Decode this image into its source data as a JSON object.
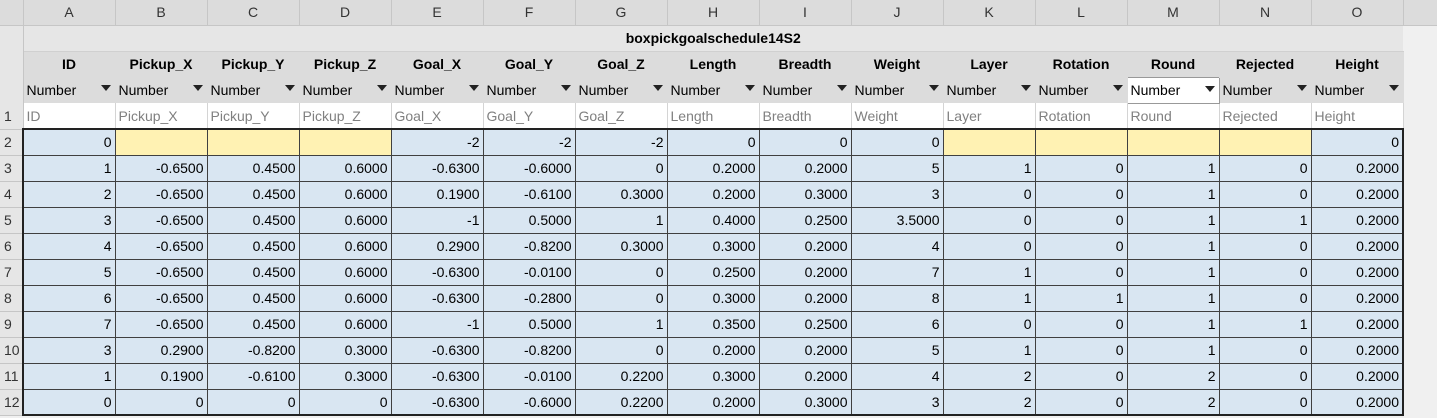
{
  "columns": [
    "A",
    "B",
    "C",
    "D",
    "E",
    "F",
    "G",
    "H",
    "I",
    "J",
    "K",
    "L",
    "M",
    "N",
    "O"
  ],
  "table_title": "boxpickgoalschedule14S2",
  "fields": [
    "ID",
    "Pickup_X",
    "Pickup_Y",
    "Pickup_Z",
    "Goal_X",
    "Goal_Y",
    "Goal_Z",
    "Length",
    "Breadth",
    "Weight",
    "Layer",
    "Rotation",
    "Round",
    "Rejected",
    "Height"
  ],
  "type_label": "Number",
  "active_type_column": "M",
  "header_row_number": "1",
  "header_values": [
    "ID",
    "Pickup_X",
    "Pickup_Y",
    "Pickup_Z",
    "Goal_X",
    "Goal_Y",
    "Goal_Z",
    "Length",
    "Breadth",
    "Weight",
    "Layer",
    "Rotation",
    "Round",
    "Rejected",
    "Height"
  ],
  "rows": [
    {
      "n": "2",
      "cells": [
        "0",
        "",
        "",
        "",
        "-2",
        "-2",
        "-2",
        "0",
        "0",
        "0",
        "",
        "",
        "",
        "",
        "0"
      ]
    },
    {
      "n": "3",
      "cells": [
        "1",
        "-0.6500",
        "0.4500",
        "0.6000",
        "-0.6300",
        "-0.6000",
        "0",
        "0.2000",
        "0.2000",
        "5",
        "1",
        "0",
        "1",
        "0",
        "0.2000"
      ]
    },
    {
      "n": "4",
      "cells": [
        "2",
        "-0.6500",
        "0.4500",
        "0.6000",
        "0.1900",
        "-0.6100",
        "0.3000",
        "0.2000",
        "0.3000",
        "3",
        "0",
        "0",
        "1",
        "0",
        "0.2000"
      ]
    },
    {
      "n": "5",
      "cells": [
        "3",
        "-0.6500",
        "0.4500",
        "0.6000",
        "-1",
        "0.5000",
        "1",
        "0.4000",
        "0.2500",
        "3.5000",
        "0",
        "0",
        "1",
        "1",
        "0.2000"
      ]
    },
    {
      "n": "6",
      "cells": [
        "4",
        "-0.6500",
        "0.4500",
        "0.6000",
        "0.2900",
        "-0.8200",
        "0.3000",
        "0.3000",
        "0.2000",
        "4",
        "0",
        "0",
        "1",
        "0",
        "0.2000"
      ]
    },
    {
      "n": "7",
      "cells": [
        "5",
        "-0.6500",
        "0.4500",
        "0.6000",
        "-0.6300",
        "-0.0100",
        "0",
        "0.2500",
        "0.2000",
        "7",
        "1",
        "0",
        "1",
        "0",
        "0.2000"
      ]
    },
    {
      "n": "8",
      "cells": [
        "6",
        "-0.6500",
        "0.4500",
        "0.6000",
        "-0.6300",
        "-0.2800",
        "0",
        "0.3000",
        "0.2000",
        "8",
        "1",
        "1",
        "1",
        "0",
        "0.2000"
      ]
    },
    {
      "n": "9",
      "cells": [
        "7",
        "-0.6500",
        "0.4500",
        "0.6000",
        "-1",
        "0.5000",
        "1",
        "0.3500",
        "0.2500",
        "6",
        "0",
        "0",
        "1",
        "1",
        "0.2000"
      ]
    },
    {
      "n": "10",
      "cells": [
        "3",
        "0.2900",
        "-0.8200",
        "0.3000",
        "-0.6300",
        "-0.8200",
        "0",
        "0.2000",
        "0.2000",
        "5",
        "1",
        "0",
        "1",
        "0",
        "0.2000"
      ]
    },
    {
      "n": "11",
      "cells": [
        "1",
        "0.1900",
        "-0.6100",
        "0.3000",
        "-0.6300",
        "-0.0100",
        "0.2200",
        "0.3000",
        "0.2000",
        "4",
        "2",
        "0",
        "2",
        "0",
        "0.2000"
      ]
    },
    {
      "n": "12",
      "cells": [
        "0",
        "0",
        "0",
        "0",
        "-0.6300",
        "-0.6000",
        "0.2200",
        "0.2000",
        "0.3000",
        "3",
        "2",
        "0",
        "2",
        "0",
        "0.2000"
      ]
    }
  ],
  "colors": {
    "data_fill": "#d9e6f2",
    "empty_fill": "#fff2b3",
    "header_fill": "#dcdcdc"
  }
}
